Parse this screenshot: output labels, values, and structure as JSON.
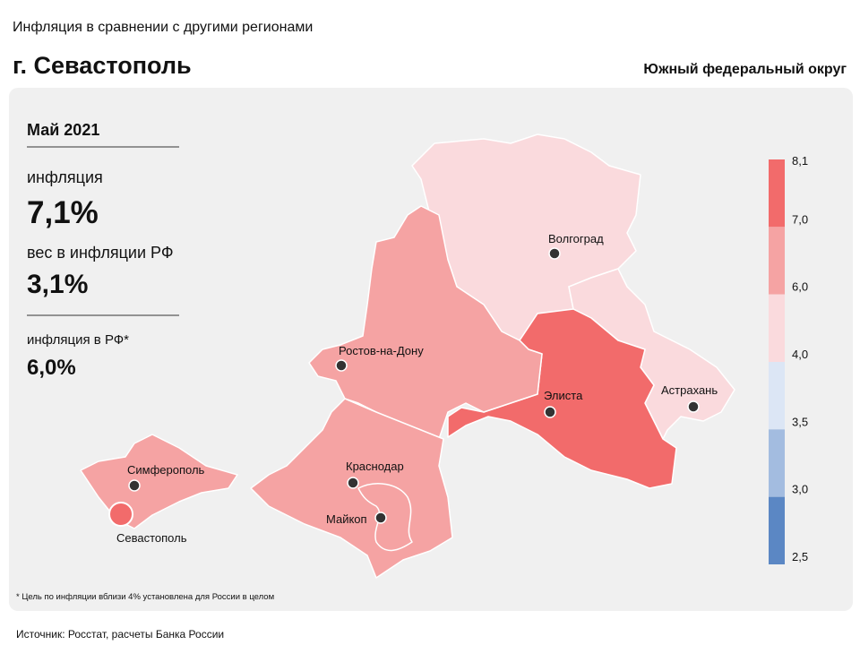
{
  "header": {
    "subtitle": "Инфляция в сравнении с другими регионами",
    "title": "г. Севастополь",
    "district": "Южный федеральный округ"
  },
  "panel": {
    "period": "Май 2021",
    "inflation_label": "инфляция",
    "inflation_value": "7,1%",
    "weight_label": "вес в инфляции РФ",
    "weight_value": "3,1%",
    "rf_label": "инфляция в РФ*",
    "rf_value": "6,0%"
  },
  "cities": [
    "Волгоград",
    "Ростов-на-Дону",
    "Элиста",
    "Астрахань",
    "Краснодар",
    "Майкоп",
    "Симферополь",
    "Севастополь"
  ],
  "legend": {
    "breaks": [
      "8,1",
      "7,0",
      "6,0",
      "4,0",
      "3,5",
      "3,0",
      "2,5"
    ],
    "colors": [
      "#f26b6b",
      "#f5a3a3",
      "#fadadd",
      "#dce6f5",
      "#a3bce0",
      "#5b87c4"
    ]
  },
  "footnote": "* Цель по инфляции вблизи 4% установлена для России в целом",
  "source": "Источник: Росстат, расчеты Банка России"
}
